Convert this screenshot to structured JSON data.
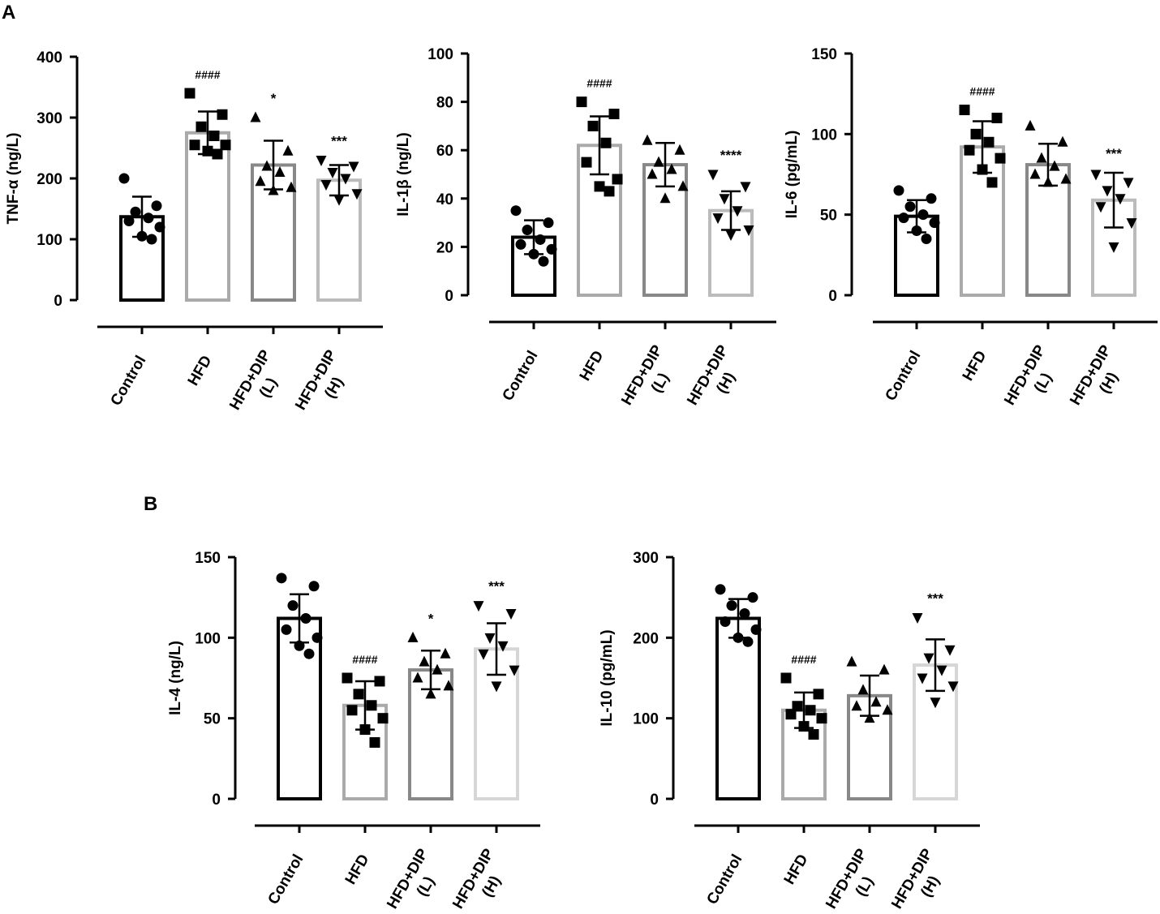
{
  "panel_labels": {
    "a": "A",
    "b": "B"
  },
  "colors": {
    "Control": "#000000",
    "HFD": "#aaaaaa",
    "HFD+DIP (L)": "#888888",
    "HFD+DIP (H)": "#bbbbbb",
    "HFD+DIP (H) panel B": "#d6d6d6"
  },
  "chart_data": [
    {
      "type": "bar",
      "panel": "A",
      "ylabel": "TNF-α (ng/L)",
      "ylim": [
        0,
        400
      ],
      "yticks": [
        0,
        100,
        200,
        300,
        400
      ],
      "categories": [
        [
          "Control"
        ],
        [
          "HFD"
        ],
        [
          "HFD+DIP",
          "(L)"
        ],
        [
          "HFD+DIP",
          "(H)"
        ]
      ],
      "means": [
        137,
        275,
        222,
        197
      ],
      "sd": [
        33,
        35,
        40,
        25
      ],
      "significance": [
        "",
        "####",
        "*",
        "***"
      ],
      "points": [
        [
          200,
          155,
          145,
          135,
          130,
          120,
          105,
          100
        ],
        [
          340,
          305,
          285,
          270,
          255,
          255,
          245,
          240
        ],
        [
          300,
          245,
          220,
          210,
          195,
          185,
          180
        ],
        [
          230,
          220,
          210,
          200,
          190,
          175,
          165
        ]
      ]
    },
    {
      "type": "bar",
      "panel": "A",
      "ylabel": "IL-1β (ng/L)",
      "ylim": [
        0,
        100
      ],
      "yticks": [
        0,
        20,
        40,
        60,
        80,
        100
      ],
      "categories": [
        [
          "Control"
        ],
        [
          "HFD"
        ],
        [
          "HFD+DIP",
          "(L)"
        ],
        [
          "HFD+DIP",
          "(H)"
        ]
      ],
      "means": [
        24,
        62,
        54,
        35
      ],
      "sd": [
        7,
        12,
        9,
        8
      ],
      "significance": [
        "",
        "####",
        "",
        "****"
      ],
      "points": [
        [
          35,
          30,
          27,
          23,
          21,
          19,
          17,
          14
        ],
        [
          80,
          75,
          70,
          63,
          55,
          48,
          45,
          43
        ],
        [
          64,
          60,
          55,
          52,
          50,
          45,
          40
        ],
        [
          50,
          45,
          40,
          35,
          32,
          27,
          25
        ]
      ]
    },
    {
      "type": "bar",
      "panel": "A",
      "ylabel": "IL-6 (pg/mL)",
      "ylim": [
        0,
        150
      ],
      "yticks": [
        0,
        50,
        100,
        150
      ],
      "categories": [
        [
          "Control"
        ],
        [
          "HFD"
        ],
        [
          "HFD+DIP",
          "(L)"
        ],
        [
          "HFD+DIP",
          "(H)"
        ]
      ],
      "means": [
        49,
        92,
        81,
        59
      ],
      "sd": [
        10,
        16,
        13,
        17
      ],
      "significance": [
        "",
        "####",
        "",
        "***"
      ],
      "points": [
        [
          65,
          60,
          55,
          50,
          48,
          45,
          40,
          35
        ],
        [
          115,
          110,
          100,
          95,
          90,
          85,
          78,
          70
        ],
        [
          105,
          95,
          85,
          80,
          75,
          72,
          70
        ],
        [
          75,
          70,
          65,
          60,
          55,
          45,
          30
        ]
      ]
    },
    {
      "type": "bar",
      "panel": "B",
      "ylabel": "IL-4 (ng/L)",
      "ylim": [
        0,
        150
      ],
      "yticks": [
        0,
        50,
        100,
        150
      ],
      "categories": [
        [
          "Control"
        ],
        [
          "HFD"
        ],
        [
          "HFD+DIP",
          "(L)"
        ],
        [
          "HFD+DIP",
          "(H)"
        ]
      ],
      "means": [
        112,
        58,
        80,
        93
      ],
      "sd": [
        15,
        15,
        12,
        16
      ],
      "significance": [
        "",
        "####",
        "*",
        "***"
      ],
      "points": [
        [
          137,
          132,
          120,
          112,
          105,
          100,
          95,
          90
        ],
        [
          75,
          73,
          65,
          58,
          55,
          50,
          43,
          35
        ],
        [
          100,
          90,
          85,
          80,
          75,
          70,
          65
        ],
        [
          120,
          115,
          100,
          95,
          90,
          80,
          70
        ]
      ]
    },
    {
      "type": "bar",
      "panel": "B",
      "ylabel": "IL-10 (pg/mL)",
      "ylim": [
        0,
        300
      ],
      "yticks": [
        0,
        100,
        200,
        300
      ],
      "categories": [
        [
          "Control"
        ],
        [
          "HFD"
        ],
        [
          "HFD+DIP",
          "(L)"
        ],
        [
          "HFD+DIP",
          "(H)"
        ]
      ],
      "means": [
        224,
        110,
        128,
        166
      ],
      "sd": [
        24,
        22,
        25,
        32
      ],
      "significance": [
        "",
        "####",
        "",
        "***"
      ],
      "points": [
        [
          260,
          250,
          240,
          230,
          220,
          210,
          200,
          195
        ],
        [
          150,
          130,
          115,
          110,
          105,
          100,
          90,
          80
        ],
        [
          170,
          160,
          135,
          120,
          115,
          110,
          100
        ],
        [
          225,
          185,
          175,
          160,
          150,
          140,
          120
        ]
      ]
    }
  ]
}
